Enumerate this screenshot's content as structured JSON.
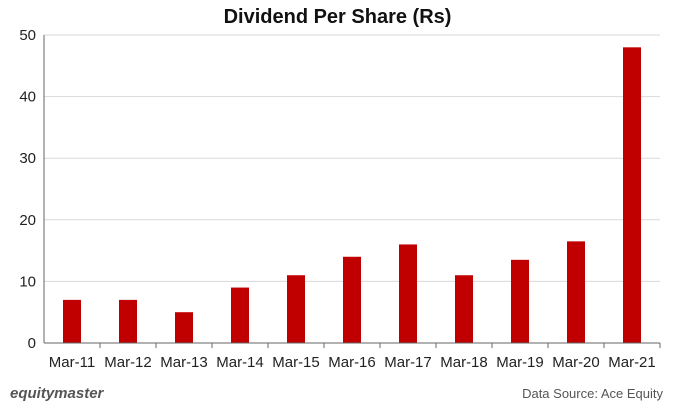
{
  "chart_data": {
    "type": "bar",
    "title": "Dividend Per Share (Rs)",
    "categories": [
      "Mar-11",
      "Mar-12",
      "Mar-13",
      "Mar-14",
      "Mar-15",
      "Mar-16",
      "Mar-17",
      "Mar-18",
      "Mar-19",
      "Mar-20",
      "Mar-21"
    ],
    "values": [
      7,
      7,
      5,
      9,
      11,
      14,
      16,
      11,
      13.5,
      16.5,
      48
    ],
    "ylim": [
      0,
      50
    ],
    "yticks": [
      "0",
      "10",
      "20",
      "30",
      "40",
      "50"
    ],
    "grid": true,
    "bar_color": "#c00000",
    "grid_color": "#d9d9d9"
  },
  "footer": {
    "brand": "equitymaster",
    "source": "Data Source: Ace Equity"
  }
}
